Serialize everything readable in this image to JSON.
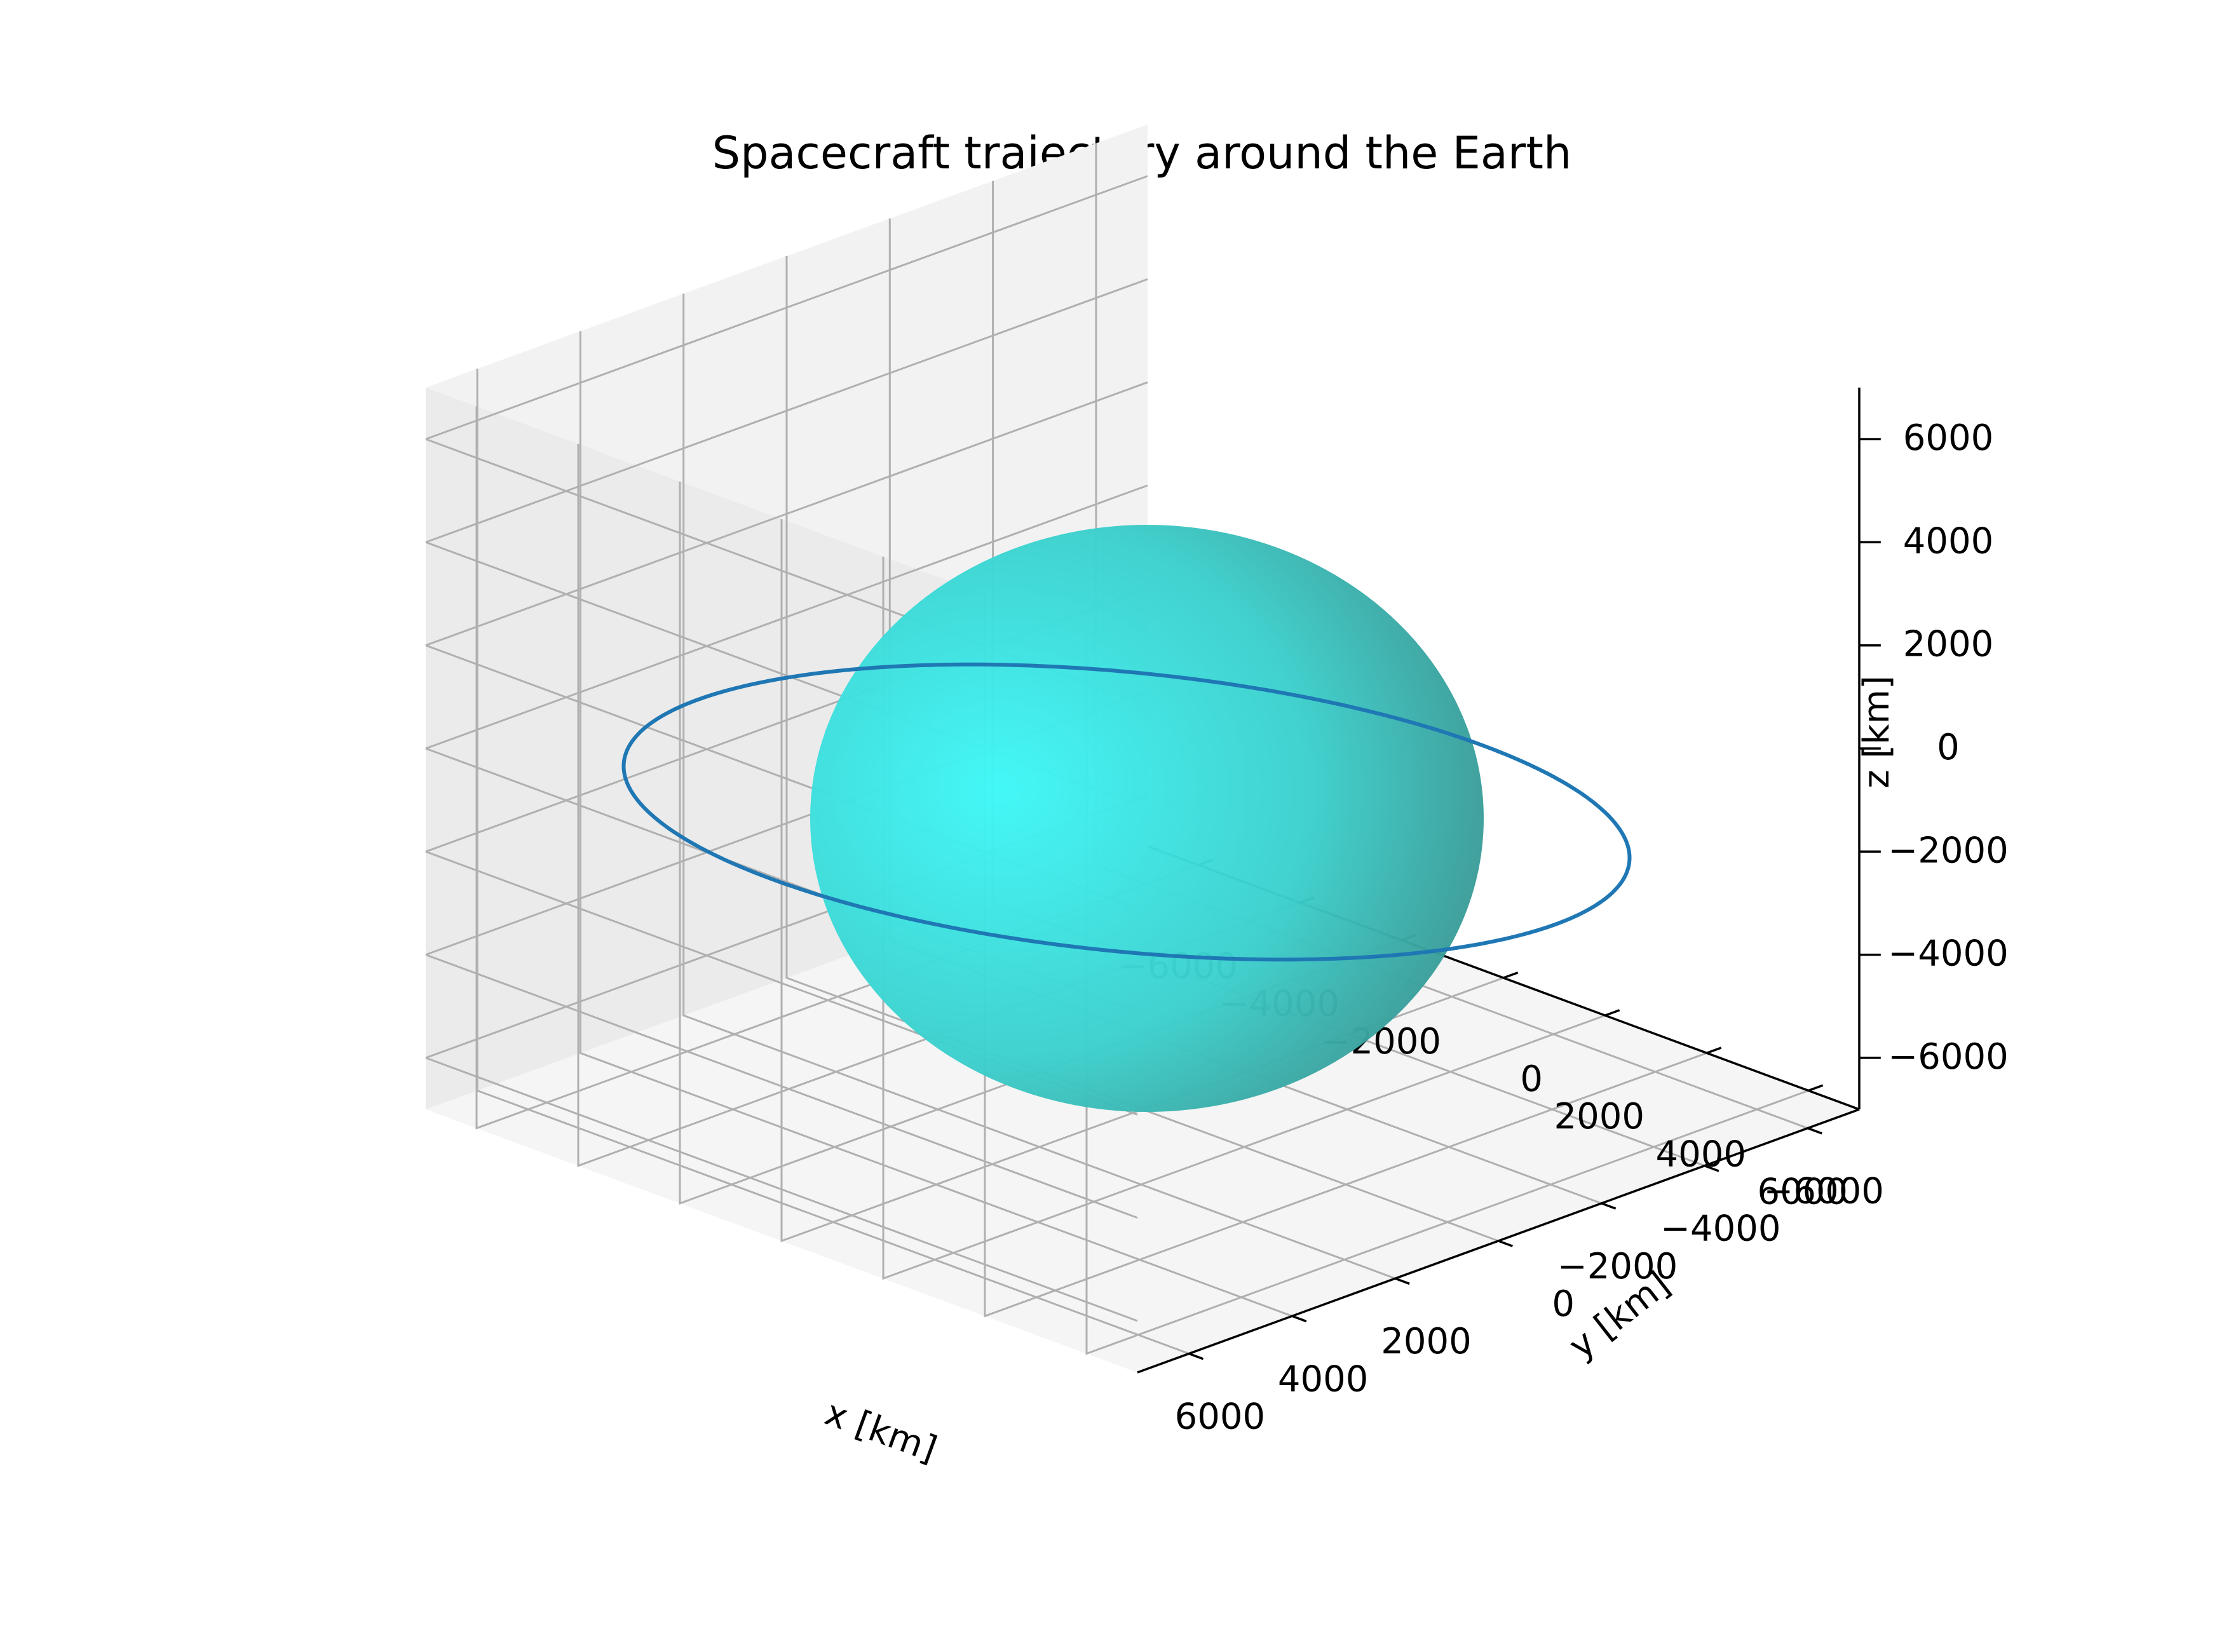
{
  "chart_data": {
    "type": "3d-surface-line",
    "title": "Spacecraft trajectory around the Earth",
    "xlabel": "x [km]",
    "ylabel": "y [km]",
    "zlabel": "z [km]",
    "xlim": [
      -7000,
      7000
    ],
    "ylim": [
      -7000,
      7000
    ],
    "zlim": [
      -7000,
      7000
    ],
    "ticks": [
      -6000,
      -4000,
      -2000,
      0,
      2000,
      4000,
      6000
    ],
    "tick_labels": [
      "−6000",
      "−4000",
      "−2000",
      "0",
      "2000",
      "4000",
      "6000"
    ],
    "grid": true,
    "sphere": {
      "name": "Earth",
      "center": [
        0,
        0,
        0
      ],
      "radius": 6378,
      "color": "#00ffff",
      "alpha": 0.75
    },
    "trajectory": {
      "type": "circular orbit",
      "radius": 7000,
      "inclination_deg": 10,
      "color": "#1f77b4"
    }
  },
  "colors": {
    "pane_left": "#f2f2f2",
    "pane_right": "#ebebeb",
    "pane_floor": "#f5f5f5",
    "grid": "#b0b0b0",
    "axis": "#000000"
  }
}
